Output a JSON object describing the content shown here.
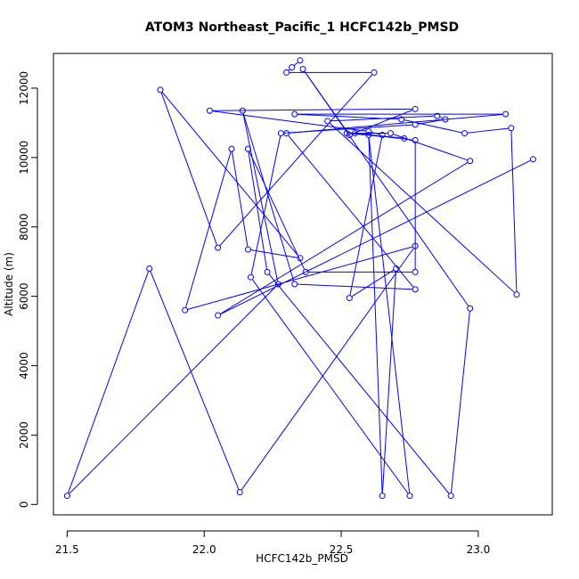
{
  "chart_data": {
    "type": "line",
    "title": "ATOM3 Northeast_Pacific_1 HCFC142b_PMSD",
    "xlabel": "HCFC142b_PMSD",
    "ylabel": "Altitude (m)",
    "xlim": [
      21.45,
      23.27
    ],
    "ylim": [
      -300,
      13000
    ],
    "x_ticks": [
      21.5,
      22.0,
      22.5,
      23.0
    ],
    "x_tick_labels": [
      "21.5",
      "22.0",
      "22.5",
      "23.0"
    ],
    "y_ticks": [
      0,
      2000,
      4000,
      6000,
      8000,
      10000,
      12000
    ],
    "y_tick_labels": [
      "0",
      "2000",
      "4000",
      "6000",
      "8000",
      "10000",
      "12000"
    ],
    "grid": false,
    "legend": "none",
    "line_color": "#0000ff",
    "marker": "open-circle",
    "series": [
      {
        "x": [
          22.35,
          22.32,
          22.3,
          22.62,
          22.05,
          21.84,
          22.35,
          22.16,
          22.1,
          21.93,
          22.77,
          22.13,
          21.8,
          21.5,
          22.27,
          22.14,
          22.33,
          22.77,
          22.3,
          23.1,
          22.33,
          22.72,
          22.95,
          23.12,
          23.14,
          22.45,
          22.85,
          22.88,
          22.77,
          22.28,
          22.17,
          22.75,
          22.6,
          22.65,
          22.7,
          22.53,
          22.65,
          22.6,
          22.02,
          22.77,
          22.53,
          22.36,
          22.97,
          22.9,
          22.23,
          22.16,
          22.37,
          22.77,
          22.77,
          22.55,
          22.73,
          22.52,
          22.68,
          22.97,
          22.05,
          23.2
        ],
        "y": [
          12800,
          12600,
          12450,
          12450,
          7400,
          11950,
          7100,
          7350,
          10250,
          5600,
          7450,
          350,
          6800,
          250,
          6350,
          11350,
          6350,
          6200,
          10700,
          11250,
          11250,
          11100,
          10700,
          10850,
          6050,
          11050,
          11200,
          11100,
          10950,
          10700,
          6550,
          250,
          10650,
          250,
          6800,
          5950,
          10650,
          10750,
          11350,
          11400,
          10650,
          12550,
          5650,
          250,
          6700,
          10250,
          6700,
          6700,
          10500,
          10700,
          10550,
          10700,
          10700,
          9900,
          5450,
          9950
        ]
      }
    ]
  }
}
